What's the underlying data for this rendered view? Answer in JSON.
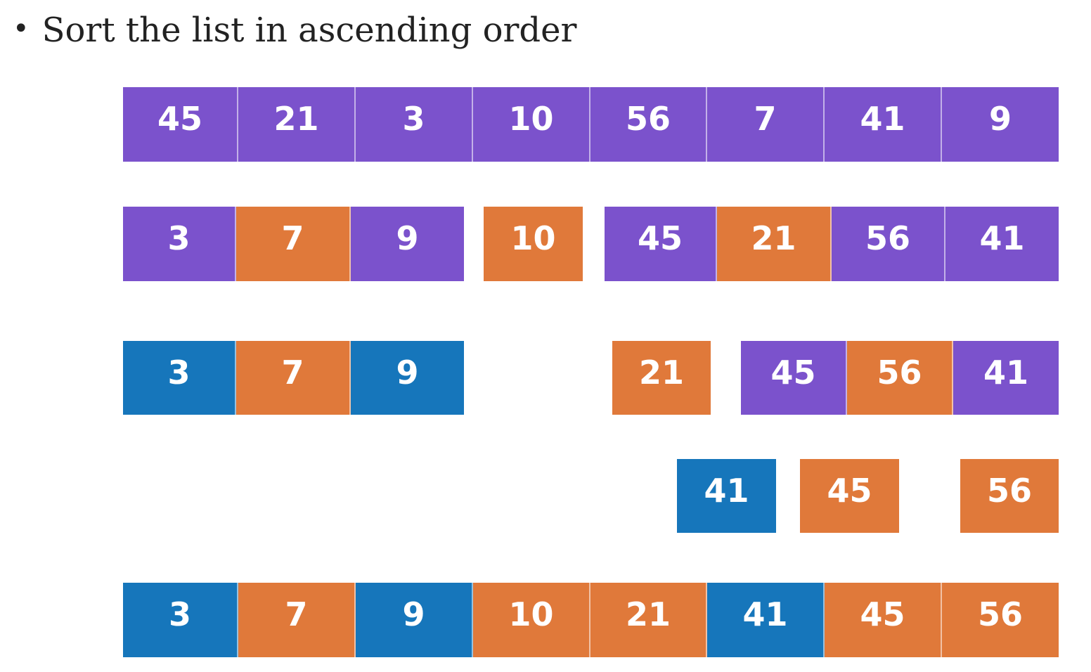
{
  "title": {
    "bullet": "•",
    "text": "Sort the list in ascending order"
  },
  "colors": {
    "purple": "#7b52cc",
    "orange": "#e0793a",
    "blue": "#1676bb"
  },
  "rows": [
    {
      "name": "row-original",
      "cells": [
        {
          "value": "45",
          "color": "purple"
        },
        {
          "value": "21",
          "color": "purple"
        },
        {
          "value": "3",
          "color": "purple"
        },
        {
          "value": "10",
          "color": "purple"
        },
        {
          "value": "56",
          "color": "purple"
        },
        {
          "value": "7",
          "color": "purple"
        },
        {
          "value": "41",
          "color": "purple"
        },
        {
          "value": "9",
          "color": "purple"
        }
      ]
    },
    {
      "name": "row-partition-1",
      "cells": [
        {
          "value": "3",
          "color": "purple"
        },
        {
          "value": "7",
          "color": "orange"
        },
        {
          "value": "9",
          "color": "purple"
        },
        {
          "value": "10",
          "color": "orange"
        },
        {
          "value": "45",
          "color": "purple"
        },
        {
          "value": "21",
          "color": "orange"
        },
        {
          "value": "56",
          "color": "purple"
        },
        {
          "value": "41",
          "color": "purple"
        }
      ]
    },
    {
      "name": "row-partition-2",
      "cells": [
        {
          "value": "3",
          "color": "blue"
        },
        {
          "value": "7",
          "color": "orange"
        },
        {
          "value": "9",
          "color": "blue"
        },
        {
          "value": "21",
          "color": "orange"
        },
        {
          "value": "45",
          "color": "purple"
        },
        {
          "value": "56",
          "color": "orange"
        },
        {
          "value": "41",
          "color": "purple"
        }
      ]
    },
    {
      "name": "row-partition-3",
      "cells": [
        {
          "value": "41",
          "color": "blue"
        },
        {
          "value": "45",
          "color": "orange"
        },
        {
          "value": "56",
          "color": "orange"
        }
      ]
    },
    {
      "name": "row-sorted",
      "cells": [
        {
          "value": "3",
          "color": "blue"
        },
        {
          "value": "7",
          "color": "orange"
        },
        {
          "value": "9",
          "color": "blue"
        },
        {
          "value": "10",
          "color": "orange"
        },
        {
          "value": "21",
          "color": "orange"
        },
        {
          "value": "41",
          "color": "blue"
        },
        {
          "value": "45",
          "color": "orange"
        },
        {
          "value": "56",
          "color": "orange"
        }
      ]
    }
  ]
}
